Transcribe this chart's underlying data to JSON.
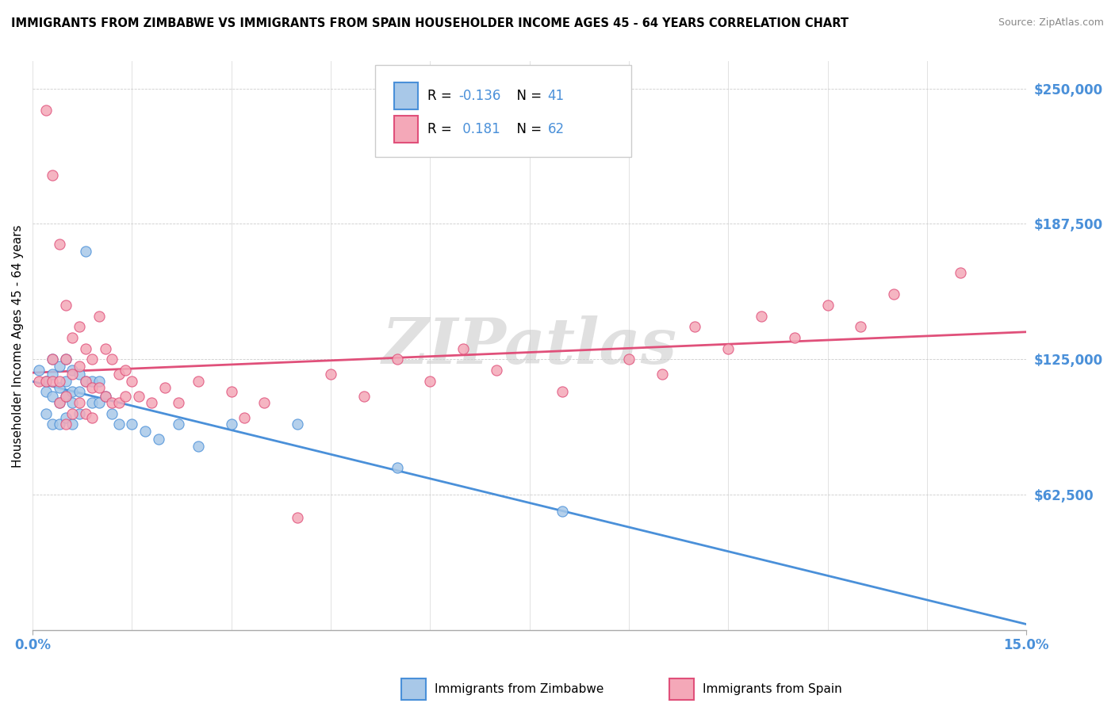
{
  "title": "IMMIGRANTS FROM ZIMBABWE VS IMMIGRANTS FROM SPAIN HOUSEHOLDER INCOME AGES 45 - 64 YEARS CORRELATION CHART",
  "source": "Source: ZipAtlas.com",
  "ylabel": "Householder Income Ages 45 - 64 years",
  "xlim": [
    0.0,
    0.15
  ],
  "ylim": [
    0,
    262500
  ],
  "yticks": [
    62500,
    125000,
    187500,
    250000
  ],
  "ytick_labels": [
    "$62,500",
    "$125,000",
    "$187,500",
    "$250,000"
  ],
  "color_zimbabwe": "#a8c8e8",
  "color_spain": "#f4a8b8",
  "line_color_zimbabwe": "#4a90d9",
  "line_color_spain": "#e0507a",
  "watermark": "ZIPatlas",
  "zimbabwe_x": [
    0.001,
    0.002,
    0.002,
    0.002,
    0.003,
    0.003,
    0.003,
    0.003,
    0.004,
    0.004,
    0.004,
    0.004,
    0.005,
    0.005,
    0.005,
    0.005,
    0.006,
    0.006,
    0.006,
    0.006,
    0.007,
    0.007,
    0.007,
    0.008,
    0.008,
    0.009,
    0.009,
    0.01,
    0.01,
    0.011,
    0.012,
    0.013,
    0.015,
    0.017,
    0.019,
    0.022,
    0.025,
    0.03,
    0.04,
    0.055,
    0.08
  ],
  "zimbabwe_y": [
    120000,
    115000,
    110000,
    100000,
    125000,
    118000,
    108000,
    95000,
    122000,
    112000,
    105000,
    95000,
    125000,
    115000,
    108000,
    98000,
    120000,
    110000,
    105000,
    95000,
    118000,
    110000,
    100000,
    175000,
    115000,
    115000,
    105000,
    115000,
    105000,
    108000,
    100000,
    95000,
    95000,
    92000,
    88000,
    95000,
    85000,
    95000,
    95000,
    75000,
    55000
  ],
  "spain_x": [
    0.001,
    0.002,
    0.002,
    0.003,
    0.003,
    0.003,
    0.004,
    0.004,
    0.004,
    0.005,
    0.005,
    0.005,
    0.005,
    0.006,
    0.006,
    0.006,
    0.007,
    0.007,
    0.007,
    0.008,
    0.008,
    0.008,
    0.009,
    0.009,
    0.009,
    0.01,
    0.01,
    0.011,
    0.011,
    0.012,
    0.012,
    0.013,
    0.013,
    0.014,
    0.014,
    0.015,
    0.016,
    0.018,
    0.02,
    0.022,
    0.025,
    0.03,
    0.032,
    0.035,
    0.04,
    0.045,
    0.05,
    0.055,
    0.06,
    0.065,
    0.07,
    0.08,
    0.09,
    0.095,
    0.1,
    0.105,
    0.11,
    0.115,
    0.12,
    0.125,
    0.13,
    0.14
  ],
  "spain_y": [
    115000,
    240000,
    115000,
    210000,
    125000,
    115000,
    178000,
    115000,
    105000,
    150000,
    125000,
    108000,
    95000,
    135000,
    118000,
    100000,
    140000,
    122000,
    105000,
    130000,
    115000,
    100000,
    125000,
    112000,
    98000,
    145000,
    112000,
    130000,
    108000,
    125000,
    105000,
    118000,
    105000,
    120000,
    108000,
    115000,
    108000,
    105000,
    112000,
    105000,
    115000,
    110000,
    98000,
    105000,
    52000,
    118000,
    108000,
    125000,
    115000,
    130000,
    120000,
    110000,
    125000,
    118000,
    140000,
    130000,
    145000,
    135000,
    150000,
    140000,
    155000,
    165000
  ]
}
